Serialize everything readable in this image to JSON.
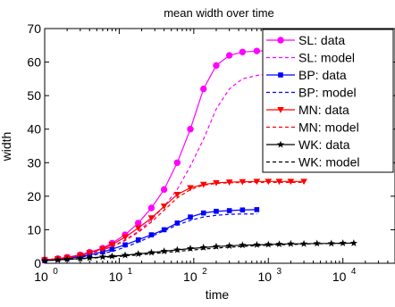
{
  "chart_data": {
    "type": "line",
    "title": "mean width over time",
    "xlabel": "time",
    "ylabel": "width",
    "xscale": "log",
    "xlim": [
      1,
      50000
    ],
    "ylim": [
      0,
      70
    ],
    "grid": false,
    "legend_position": "top-right",
    "x_ticks": [
      {
        "value": 1,
        "base": "10",
        "exp": "0"
      },
      {
        "value": 10,
        "base": "10",
        "exp": "1"
      },
      {
        "value": 100,
        "base": "10",
        "exp": "2"
      },
      {
        "value": 1000,
        "base": "10",
        "exp": "3"
      },
      {
        "value": 10000,
        "base": "10",
        "exp": "4"
      }
    ],
    "y_ticks": [
      0,
      10,
      20,
      30,
      40,
      50,
      60,
      70
    ],
    "series": [
      {
        "name": "SL: data",
        "color": "#ff00ff",
        "style": "solid",
        "marker": "circle",
        "x": [
          1,
          1.5,
          2,
          3,
          4,
          6,
          8,
          12,
          18,
          27,
          40,
          60,
          90,
          135,
          200,
          300,
          450,
          700,
          1000,
          1400
        ],
        "y": [
          1,
          1.4,
          1.8,
          2.5,
          3.3,
          4.5,
          6,
          8.5,
          12,
          16.5,
          22,
          30,
          40,
          52,
          59,
          62,
          63,
          63.3,
          63.4,
          63.5
        ]
      },
      {
        "name": "SL: model",
        "color": "#ff00ff",
        "style": "dashed",
        "marker": "none",
        "x": [
          1,
          2,
          3,
          5,
          8,
          12,
          18,
          27,
          40,
          60,
          90,
          135,
          200,
          300,
          450,
          700,
          1000,
          1400
        ],
        "y": [
          1,
          1.7,
          2.3,
          3.5,
          5,
          7,
          9.5,
          13,
          17,
          22,
          29,
          37,
          46,
          52,
          55,
          56,
          56.5,
          56.5
        ]
      },
      {
        "name": "BP: data",
        "color": "#0000ff",
        "style": "solid",
        "marker": "square",
        "x": [
          1,
          1.5,
          2,
          3,
          4,
          6,
          8,
          12,
          18,
          27,
          40,
          60,
          90,
          135,
          200,
          300,
          450,
          700
        ],
        "y": [
          0.9,
          1.2,
          1.5,
          2,
          2.5,
          3.4,
          4.2,
          5.5,
          7,
          8.5,
          10,
          12,
          13.8,
          15,
          15.5,
          15.7,
          15.9,
          16
        ]
      },
      {
        "name": "BP: model",
        "color": "#0000ff",
        "style": "dashed",
        "marker": "none",
        "x": [
          1,
          2,
          4,
          8,
          12,
          18,
          27,
          40,
          60,
          90,
          135,
          200,
          300,
          450,
          700
        ],
        "y": [
          0.9,
          1.4,
          2.2,
          3.5,
          4.8,
          6.3,
          8,
          9.7,
          11.4,
          12.8,
          13.8,
          14.3,
          14.6,
          14.7,
          14.7
        ]
      },
      {
        "name": "MN: data",
        "color": "#ff0000",
        "style": "solid",
        "marker": "triangle-down",
        "x": [
          1,
          1.5,
          2,
          3,
          4,
          6,
          8,
          12,
          18,
          27,
          40,
          60,
          90,
          135,
          200,
          300,
          450,
          700,
          1000,
          1400,
          2000,
          3000
        ],
        "y": [
          1,
          1.3,
          1.7,
          2.4,
          3.1,
          4.3,
          5.6,
          7.8,
          10.5,
          13.5,
          17,
          20.5,
          22.5,
          23.5,
          24,
          24.2,
          24.3,
          24.4,
          24.4,
          24.4,
          24.4,
          24.4
        ]
      },
      {
        "name": "MN: model",
        "color": "#ff0000",
        "style": "dashed",
        "marker": "none",
        "x": [
          1,
          2,
          4,
          8,
          12,
          18,
          27,
          40,
          60,
          90,
          135,
          200,
          300,
          450,
          700,
          1000,
          1400,
          2000,
          3000
        ],
        "y": [
          1,
          1.6,
          2.8,
          4.9,
          6.8,
          9.2,
          12.3,
          15.8,
          19.5,
          22,
          23.3,
          23.8,
          24,
          24.1,
          24.1,
          24.1,
          24.1,
          24.1,
          24.1
        ]
      },
      {
        "name": "WK: data",
        "color": "#000000",
        "style": "solid",
        "marker": "star",
        "x": [
          1,
          1.5,
          2,
          3,
          4,
          6,
          8,
          12,
          18,
          27,
          40,
          60,
          90,
          135,
          200,
          300,
          450,
          700,
          1000,
          1400,
          2000,
          3000,
          4500,
          7000,
          10000,
          14000
        ],
        "y": [
          0.8,
          1,
          1.2,
          1.4,
          1.6,
          1.9,
          2.1,
          2.4,
          2.8,
          3.2,
          3.6,
          4,
          4.4,
          4.7,
          5,
          5.2,
          5.4,
          5.5,
          5.6,
          5.7,
          5.8,
          5.8,
          5.9,
          5.9,
          6,
          6
        ]
      },
      {
        "name": "WK: model",
        "color": "#000000",
        "style": "dashed",
        "marker": "none",
        "x": [
          1,
          2,
          4,
          8,
          16,
          32,
          64,
          128,
          256,
          512,
          1000,
          2000,
          4000,
          8000,
          14000
        ],
        "y": [
          0.8,
          1.1,
          1.5,
          1.9,
          2.4,
          3,
          3.6,
          4.2,
          4.7,
          5.1,
          5.4,
          5.6,
          5.8,
          5.9,
          6
        ]
      }
    ]
  }
}
